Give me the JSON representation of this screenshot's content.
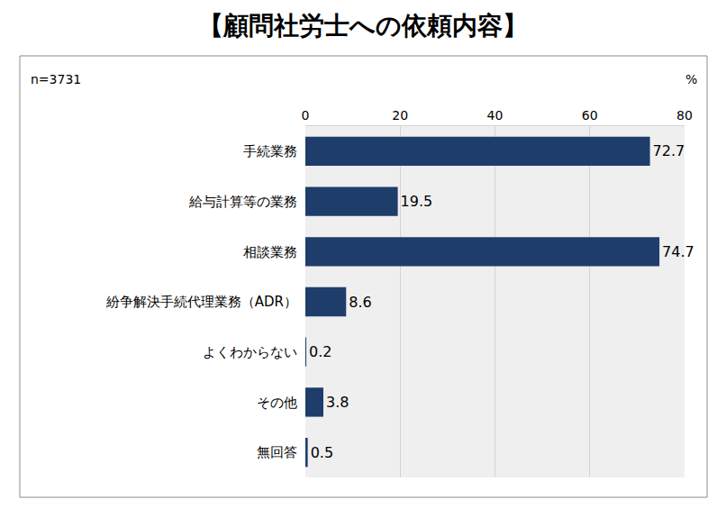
{
  "chart_data": {
    "type": "bar",
    "title": "【顧問社労士への依頼内容】",
    "annotations": [
      "n=3731"
    ],
    "xlabel": "%",
    "categories": [
      "手続業務",
      "給与計算等の業務",
      "相談業務",
      "紛争解決手続代理業務（ADR）",
      "よくわからない",
      "その他",
      "無回答"
    ],
    "values": [
      72.7,
      19.5,
      74.7,
      8.6,
      0.2,
      3.8,
      0.5
    ],
    "color": "#1f3d6b",
    "orientation": "horizontal",
    "xlim": [
      0,
      80
    ],
    "xticks": [
      0,
      20,
      40,
      60,
      80
    ],
    "grid": true,
    "data_labels": true
  }
}
